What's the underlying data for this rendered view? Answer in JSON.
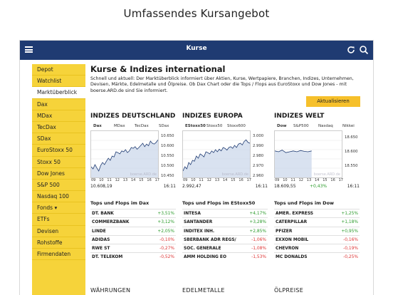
{
  "caption": "Umfassendes Kursangebot",
  "app": {
    "title": "Kurse"
  },
  "sidebar": {
    "items": [
      {
        "label": "Depot",
        "active": false
      },
      {
        "label": "Watchlist",
        "active": false
      },
      {
        "label": "Marktüberblick",
        "active": true
      },
      {
        "label": "Dax",
        "active": false
      },
      {
        "label": "MDax",
        "active": false
      },
      {
        "label": "TecDax",
        "active": false
      },
      {
        "label": "SDax",
        "active": false
      },
      {
        "label": "EuroStoxx 50",
        "active": false
      },
      {
        "label": "Stoxx 50",
        "active": false
      },
      {
        "label": "Dow Jones",
        "active": false
      },
      {
        "label": "S&P 500",
        "active": false
      },
      {
        "label": "Nasdaq 100",
        "active": false
      },
      {
        "label": "Fonds ▾",
        "active": false
      },
      {
        "label": "ETFs",
        "active": false
      },
      {
        "label": "Devisen",
        "active": false
      },
      {
        "label": "Rohstoffe",
        "active": false
      },
      {
        "label": "Firmendaten",
        "active": false
      }
    ]
  },
  "main": {
    "title": "Kurse & Indizes international",
    "intro": "Schnell und aktuell: Der Marktüberblick informiert über Aktien, Kurse, Wertpapiere, Branchen, Indizes, Unternehmen, Devisen, Märkte, Edelmetalle und Ölpreise. Ob Dax Chart oder die Tops / Flops aus EuroStoxx und Dow Jones - mit boerse.ARD.de sind Sie informiert.",
    "refresh_label": "Aktualisieren",
    "sections": [
      "WÄHRUNGEN",
      "EDELMETALLE",
      "ÖLPREISE"
    ]
  },
  "columns": [
    {
      "heading": "INDIZES DEUTSCHLAND",
      "tabs": [
        "Dax",
        "MDax",
        "TecDax",
        "SDax"
      ],
      "selected_tab": 0,
      "yticks": [
        "10.650",
        "10.600",
        "10.550",
        "10.500",
        "10.450"
      ],
      "xticks": [
        "09",
        "10",
        "11",
        "12",
        "13",
        "14",
        "15",
        "16",
        "17"
      ],
      "value": "10.608,19",
      "time": "16:11",
      "watermark": "boerse.ARD.de",
      "series": [
        0.25,
        0.2,
        0.3,
        0.22,
        0.15,
        0.28,
        0.35,
        0.3,
        0.38,
        0.45,
        0.4,
        0.5,
        0.48,
        0.6,
        0.58,
        0.55,
        0.62,
        0.6,
        0.65,
        0.58,
        0.62,
        0.7,
        0.68,
        0.72,
        0.66,
        0.7,
        0.75,
        0.8,
        0.72,
        0.78,
        0.74,
        0.85,
        0.8,
        0.78,
        0.82,
        0.88
      ],
      "tops_heading": "Tops und Flops im Dax",
      "rows": [
        {
          "name": "DT. BANK",
          "change": "+3,51%",
          "dir": "up"
        },
        {
          "name": "COMMERZBANK",
          "change": "+3,12%",
          "dir": "up"
        },
        {
          "name": "LINDE",
          "change": "+2,05%",
          "dir": "up"
        },
        {
          "name": "ADIDAS",
          "change": "-0,10%",
          "dir": "dn"
        },
        {
          "name": "RWE ST",
          "change": "-0,27%",
          "dir": "dn"
        },
        {
          "name": "DT. TELEKOM",
          "change": "-0,52%",
          "dir": "dn"
        }
      ]
    },
    {
      "heading": "INDIZES EUROPA",
      "tabs": [
        "EStoxx50",
        "Stoxx50",
        "Stoxx600"
      ],
      "selected_tab": 0,
      "yticks": [
        "3.000",
        "2.990",
        "2.980",
        "2.970",
        "2.960"
      ],
      "xticks": [
        "09",
        "10",
        "11",
        "12",
        "13",
        "14",
        "15",
        "16",
        "17"
      ],
      "value": "2.992,47",
      "time": "16:11",
      "watermark": "boerse.ARD.de",
      "series": [
        0.15,
        0.25,
        0.2,
        0.35,
        0.3,
        0.4,
        0.38,
        0.5,
        0.45,
        0.55,
        0.52,
        0.48,
        0.6,
        0.58,
        0.55,
        0.62,
        0.58,
        0.65,
        0.6,
        0.66,
        0.62,
        0.7,
        0.68,
        0.64,
        0.7,
        0.72,
        0.68,
        0.75,
        0.7,
        0.78,
        0.8,
        0.76,
        0.84,
        0.88,
        0.82,
        0.8
      ],
      "tops_heading": "Tops und Flops im EStoxx50",
      "rows": [
        {
          "name": "INTESA",
          "change": "+4,17%",
          "dir": "up"
        },
        {
          "name": "SANTANDER",
          "change": "+3,28%",
          "dir": "up"
        },
        {
          "name": "INDITEX INH.",
          "change": "+2,85%",
          "dir": "up"
        },
        {
          "name": "SBERBANK ADR REGS/",
          "change": "-1,06%",
          "dir": "dn"
        },
        {
          "name": "SOC. GENERALE",
          "change": "-1,08%",
          "dir": "dn"
        },
        {
          "name": "AMM HOLDING EO",
          "change": "-1,53%",
          "dir": "dn"
        }
      ]
    },
    {
      "heading": "INDIZES WELT",
      "tabs": [
        "Dow",
        "S&P500",
        "Nasdaq C.",
        "Nikkei"
      ],
      "selected_tab": 0,
      "yticks": [
        "18.650",
        "18.600",
        "18.550"
      ],
      "xticks": [
        "09",
        "10",
        "11",
        "12",
        "13",
        "14",
        "15",
        "16",
        "17"
      ],
      "value": "18.609,55",
      "time": "16:11",
      "watermark": "boerse.ARD.de",
      "series": [
        0.62,
        0.6,
        0.64,
        0.58,
        0.6,
        0.62,
        0.6,
        0.63,
        0.61,
        0.6,
        0.62
      ],
      "tops_heading": "Tops und Flops im Dow",
      "change": "+0,43%",
      "rows": [
        {
          "name": "AMER. EXPRESS",
          "change": "+1,25%",
          "dir": "up"
        },
        {
          "name": "CATERPILLAR",
          "change": "+1,18%",
          "dir": "up"
        },
        {
          "name": "PFIZER",
          "change": "+0,95%",
          "dir": "up"
        },
        {
          "name": "EXXON MOBIL",
          "change": "-0,16%",
          "dir": "dn"
        },
        {
          "name": "CHEVRON",
          "change": "-0,19%",
          "dir": "dn"
        },
        {
          "name": "MC DONALDS",
          "change": "-0,25%",
          "dir": "dn"
        }
      ]
    }
  ]
}
